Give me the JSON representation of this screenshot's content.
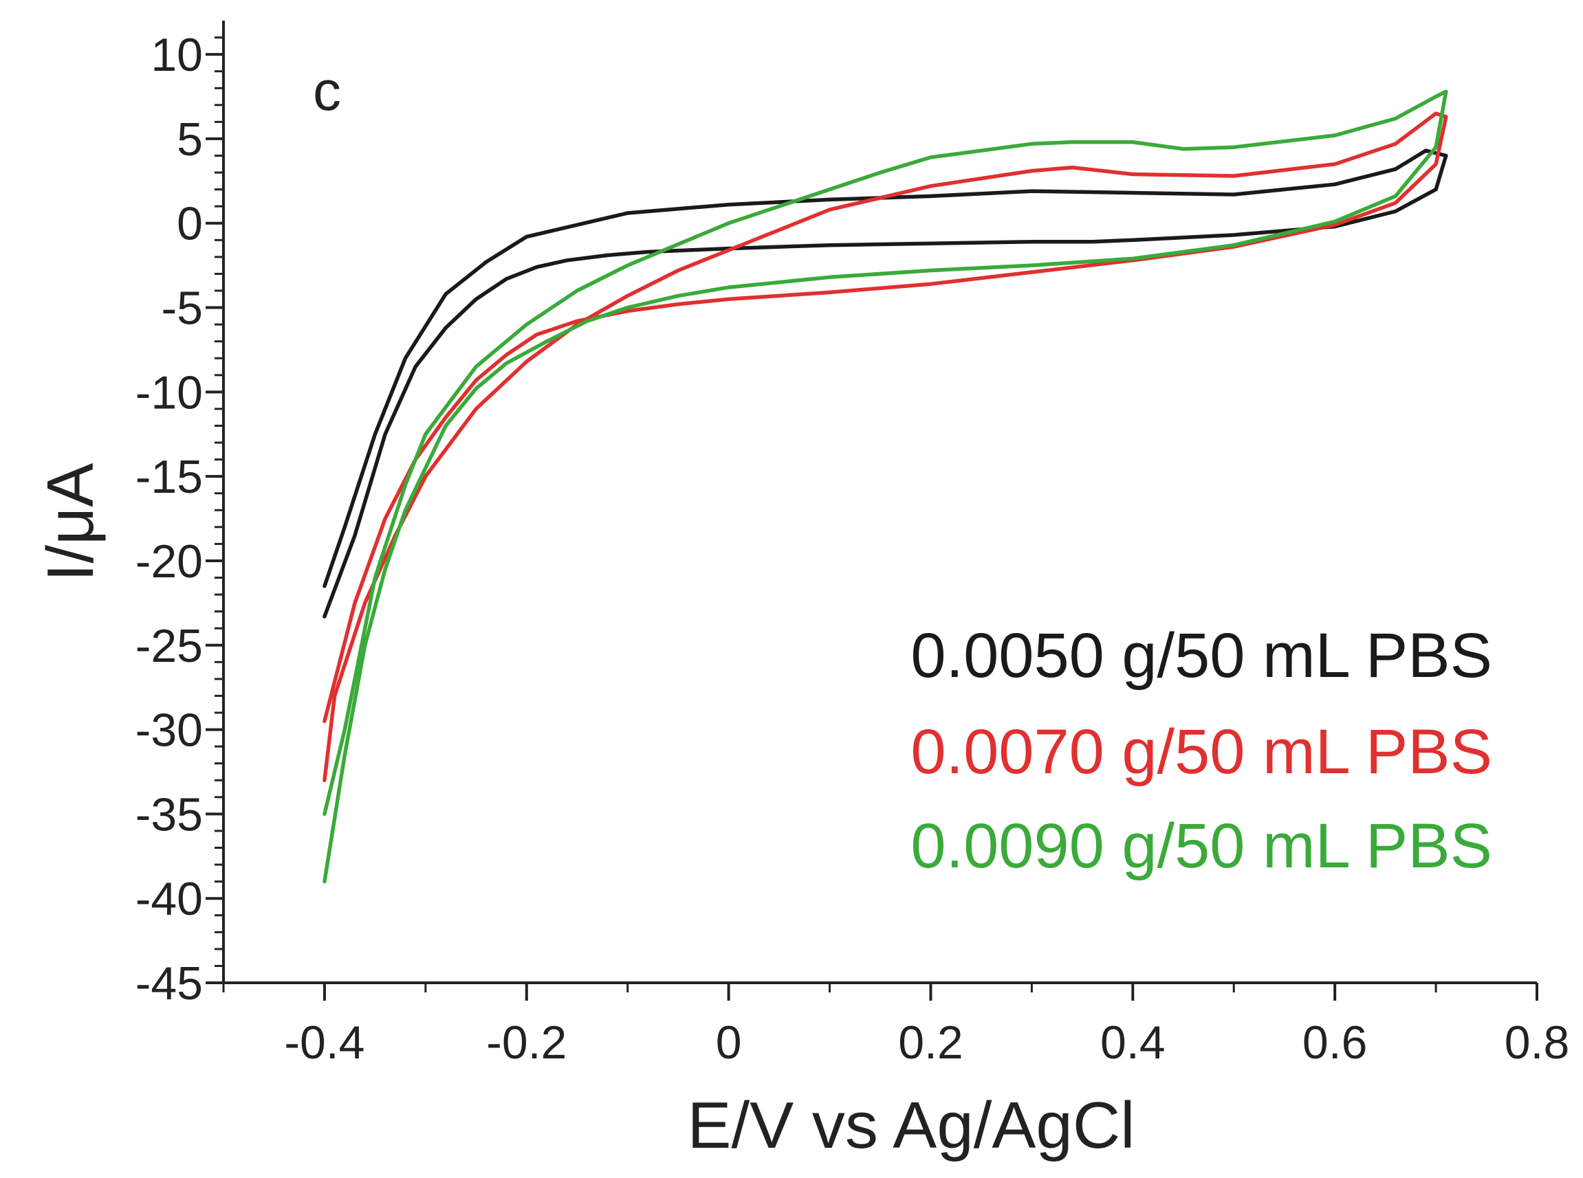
{
  "chart_data": {
    "type": "line",
    "panel_label": "c",
    "xlabel": "E/V vs Ag/AgCl",
    "ylabel": "I/μA",
    "xlim": [
      -0.5,
      0.8
    ],
    "ylim": [
      -45,
      12
    ],
    "x_ticks": [
      -0.4,
      -0.2,
      0,
      0.2,
      0.4,
      0.6,
      0.8
    ],
    "x_tick_labels": [
      "-0.4",
      "-0.2",
      "0",
      "0.2",
      "0.4",
      "0.6",
      "0.8"
    ],
    "y_ticks": [
      10,
      5,
      0,
      -5,
      -10,
      -15,
      -20,
      -25,
      -30,
      -35,
      -40,
      -45
    ],
    "y_tick_labels": [
      "10",
      "5",
      "0",
      "-5",
      "-10",
      "-15",
      "-20",
      "-25",
      "-30",
      "-35",
      "-40",
      "-45"
    ],
    "grid": false,
    "legend_placement": "lower-right",
    "series": [
      {
        "name": "0.0050 g/50 mL PBS",
        "color": "#1a1a1a",
        "x": [
          -0.4,
          -0.37,
          -0.34,
          -0.31,
          -0.28,
          -0.25,
          -0.22,
          -0.19,
          -0.16,
          -0.12,
          -0.08,
          -0.04,
          0.0,
          0.05,
          0.1,
          0.2,
          0.3,
          0.34,
          0.36,
          0.4,
          0.5,
          0.6,
          0.66,
          0.7,
          0.71,
          0.69,
          0.66,
          0.6,
          0.5,
          0.4,
          0.3,
          0.2,
          0.1,
          0.0,
          -0.1,
          -0.2,
          -0.24,
          -0.28,
          -0.32,
          -0.35,
          -0.38,
          -0.4
        ],
        "y": [
          -23.3,
          -18.5,
          -12.5,
          -8.5,
          -6.2,
          -4.5,
          -3.3,
          -2.6,
          -2.2,
          -1.9,
          -1.7,
          -1.6,
          -1.5,
          -1.4,
          -1.3,
          -1.2,
          -1.1,
          -1.1,
          -1.1,
          -1.0,
          -0.7,
          -0.2,
          0.7,
          2.0,
          4.0,
          4.3,
          3.2,
          2.3,
          1.7,
          1.8,
          1.9,
          1.6,
          1.4,
          1.1,
          0.6,
          -0.8,
          -2.3,
          -4.2,
          -8.0,
          -12.5,
          -18.0,
          -21.5
        ]
      },
      {
        "name": "0.0070 g/50 mL PBS",
        "color": "#e03030",
        "x": [
          -0.4,
          -0.37,
          -0.34,
          -0.31,
          -0.28,
          -0.25,
          -0.22,
          -0.19,
          -0.15,
          -0.1,
          -0.05,
          0.0,
          0.1,
          0.2,
          0.3,
          0.4,
          0.5,
          0.6,
          0.66,
          0.7,
          0.71,
          0.7,
          0.66,
          0.6,
          0.5,
          0.4,
          0.34,
          0.3,
          0.2,
          0.15,
          0.1,
          0.0,
          -0.05,
          -0.1,
          -0.15,
          -0.2,
          -0.25,
          -0.3,
          -0.33,
          -0.36,
          -0.39,
          -0.4
        ],
        "y": [
          -29.5,
          -22.5,
          -17.5,
          -14.0,
          -11.5,
          -9.3,
          -7.8,
          -6.6,
          -5.8,
          -5.2,
          -4.8,
          -4.5,
          -4.1,
          -3.6,
          -2.9,
          -2.2,
          -1.4,
          -0.1,
          1.2,
          3.5,
          6.3,
          6.5,
          4.7,
          3.5,
          2.8,
          2.9,
          3.3,
          3.1,
          2.2,
          1.5,
          0.8,
          -1.6,
          -2.8,
          -4.3,
          -6.0,
          -8.2,
          -11.0,
          -15.0,
          -18.5,
          -22.5,
          -28.0,
          -33.0
        ]
      },
      {
        "name": "0.0090 g/50 mL PBS",
        "color": "#3aaa3a",
        "x": [
          -0.4,
          -0.38,
          -0.36,
          -0.34,
          -0.32,
          -0.3,
          -0.28,
          -0.25,
          -0.22,
          -0.18,
          -0.14,
          -0.1,
          -0.05,
          0.0,
          0.1,
          0.2,
          0.3,
          0.4,
          0.5,
          0.6,
          0.66,
          0.7,
          0.71,
          0.7,
          0.66,
          0.6,
          0.5,
          0.45,
          0.4,
          0.34,
          0.3,
          0.2,
          0.15,
          0.1,
          0.0,
          -0.1,
          -0.15,
          -0.2,
          -0.25,
          -0.3,
          -0.32,
          -0.35,
          -0.38,
          -0.4
        ],
        "y": [
          -39.0,
          -31.5,
          -25.0,
          -20.5,
          -17.0,
          -14.5,
          -12.0,
          -9.8,
          -8.3,
          -7.0,
          -5.8,
          -5.0,
          -4.3,
          -3.8,
          -3.2,
          -2.8,
          -2.5,
          -2.1,
          -1.3,
          0.1,
          1.6,
          4.5,
          7.8,
          7.5,
          6.2,
          5.2,
          4.5,
          4.4,
          4.8,
          4.8,
          4.7,
          3.9,
          3.0,
          2.0,
          0.0,
          -2.5,
          -4.0,
          -6.0,
          -8.5,
          -12.5,
          -15.5,
          -21.0,
          -30.0,
          -35.0
        ]
      }
    ]
  }
}
